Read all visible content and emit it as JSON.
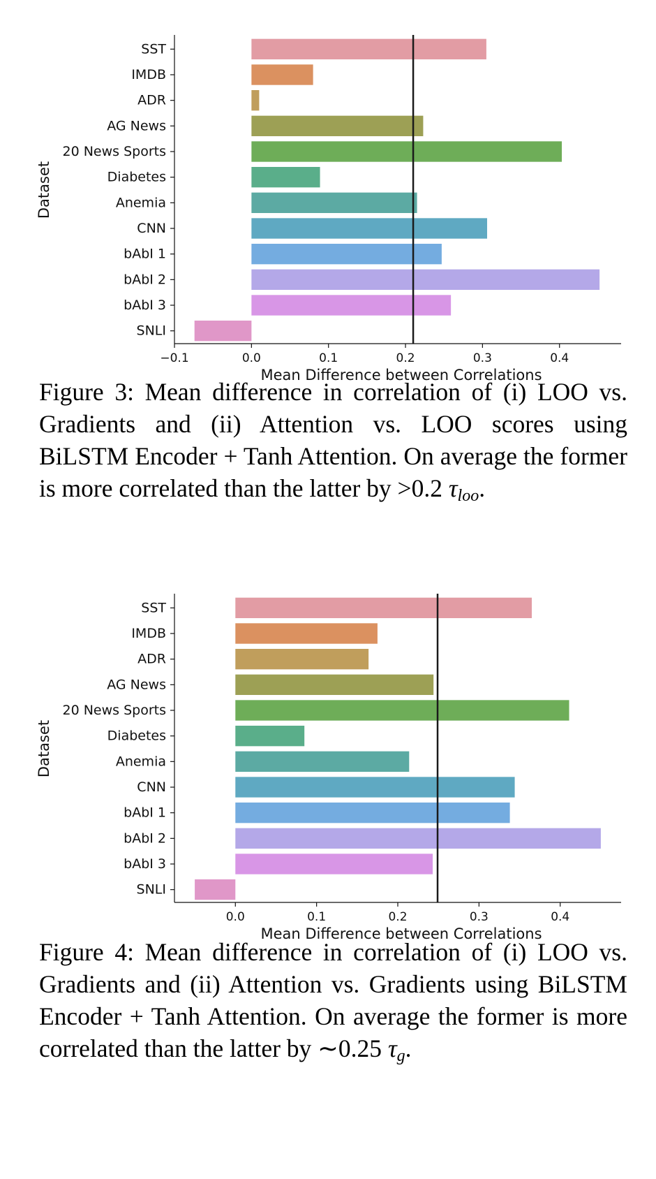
{
  "figures": [
    {
      "caption": {
        "prefix": "Figure 3:  Mean difference in correlation of (i) LOO vs. Gradients and (ii) Attention vs. LOO scores using BiLSTM Encoder + Tanh Attention.  On average the former is more correlated than the latter by >0.2 ",
        "symbol": "τ",
        "subscript": "loo",
        "suffix": "."
      }
    },
    {
      "caption": {
        "prefix": "Figure 4:  Mean difference in correlation of (i) LOO vs.  Gradients and (ii) Attention vs.  Gradients using BiLSTM Encoder + Tanh Attention.  On average the former is more correlated than the latter by ∼0.25 ",
        "symbol": "τ",
        "subscript": "g",
        "suffix": "."
      }
    }
  ],
  "chart_data": [
    {
      "type": "bar",
      "orientation": "horizontal",
      "categories": [
        "SST",
        "IMDB",
        "ADR",
        "AG News",
        "20 News Sports",
        "Diabetes",
        "Anemia",
        "CNN",
        "bAbI 1",
        "bAbI 2",
        "bAbI 3",
        "SNLI"
      ],
      "values": [
        0.305,
        0.08,
        0.01,
        0.223,
        0.403,
        0.089,
        0.215,
        0.306,
        0.247,
        0.452,
        0.259,
        -0.074
      ],
      "colors": [
        "#e29ca4",
        "#db9160",
        "#c09e5c",
        "#9da055",
        "#6ead58",
        "#5aae8a",
        "#5caaa3",
        "#5fa9c2",
        "#74ace0",
        "#b4a8e8",
        "#d896e6",
        "#e097c8"
      ],
      "mean_line": 0.21,
      "xlabel": "Mean Difference between Correlations",
      "ylabel": "Dataset",
      "xlim": [
        -0.1,
        0.48
      ],
      "xticks": [
        -0.1,
        0.0,
        0.1,
        0.2,
        0.3,
        0.4
      ],
      "xtick_labels": [
        "−0.1",
        "0.0",
        "0.1",
        "0.2",
        "0.3",
        "0.4"
      ]
    },
    {
      "type": "bar",
      "orientation": "horizontal",
      "categories": [
        "SST",
        "IMDB",
        "ADR",
        "AG News",
        "20 News Sports",
        "Diabetes",
        "Anemia",
        "CNN",
        "bAbI 1",
        "bAbI 2",
        "bAbI 3",
        "SNLI"
      ],
      "values": [
        0.365,
        0.175,
        0.164,
        0.244,
        0.411,
        0.085,
        0.214,
        0.344,
        0.338,
        0.45,
        0.243,
        -0.05
      ],
      "colors": [
        "#e29ca4",
        "#db9160",
        "#c09e5c",
        "#9da055",
        "#6ead58",
        "#5aae8a",
        "#5caaa3",
        "#5fa9c2",
        "#74ace0",
        "#b4a8e8",
        "#d896e6",
        "#e097c8"
      ],
      "mean_line": 0.249,
      "xlabel": "Mean Difference between Correlations",
      "ylabel": "Dataset",
      "xlim": [
        -0.075,
        0.475
      ],
      "xticks": [
        0.0,
        0.1,
        0.2,
        0.3,
        0.4
      ],
      "xtick_labels": [
        "0.0",
        "0.1",
        "0.2",
        "0.3",
        "0.4"
      ]
    }
  ]
}
